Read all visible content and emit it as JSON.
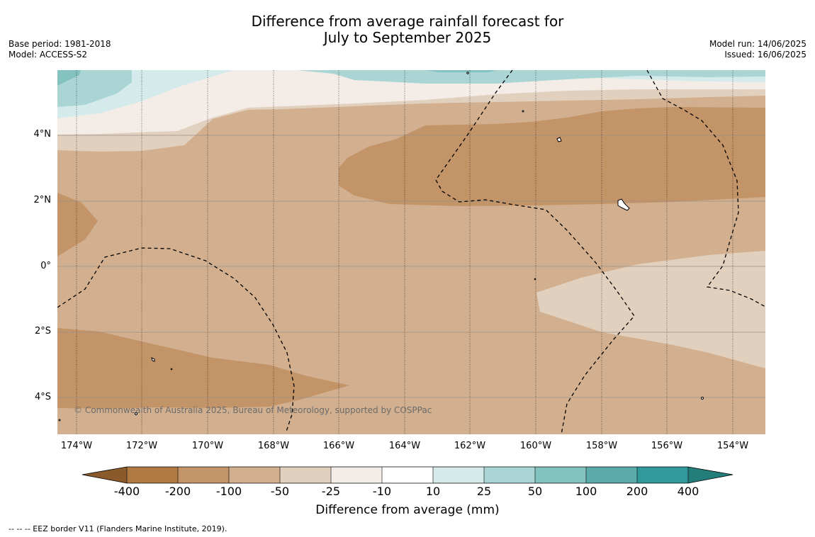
{
  "title_line1": "Difference from average rainfall forecast for",
  "title_line2": "July to September 2025",
  "base_period": "Base period: 1981-2018",
  "model": "Model: ACCESS-S2",
  "model_run": "Model run: 14/06/2025",
  "issued": "Issued: 16/06/2025",
  "lat_labels": [
    "4°N",
    "2°N",
    "0°",
    "2°S",
    "4°S"
  ],
  "lon_labels": [
    "174°W",
    "172°W",
    "170°W",
    "168°W",
    "166°W",
    "164°W",
    "162°W",
    "160°W",
    "158°W",
    "156°W",
    "154°W"
  ],
  "copyright": "© Commonwealth of Australia 2025, Bureau of Meteorology, supported by COSPPac",
  "colorbar": {
    "title": "Difference from average (mm)",
    "tick_labels": [
      "-400",
      "-200",
      "-100",
      "-50",
      "-25",
      "-10",
      "10",
      "25",
      "50",
      "100",
      "200",
      "400"
    ],
    "colors": {
      "lt_-400": "#8a5a2b",
      "-400_-200": "#b07a42",
      "-200_-100": "#c39468",
      "-100_-50": "#d2b08f",
      "-50_-25": "#e2d0bf",
      "-25_-10": "#f4ede7",
      "-10_10": "#ffffff",
      "10_25": "#d5eaea",
      "25_50": "#abd5d5",
      "50_100": "#84c2c0",
      "100_200": "#5aaba9",
      "200_400": "#32999a",
      "gt_400": "#237d7a"
    }
  },
  "legend_note": "--  --  -- EEZ border V11 (Flanders Marine Institute, 2019)."
}
